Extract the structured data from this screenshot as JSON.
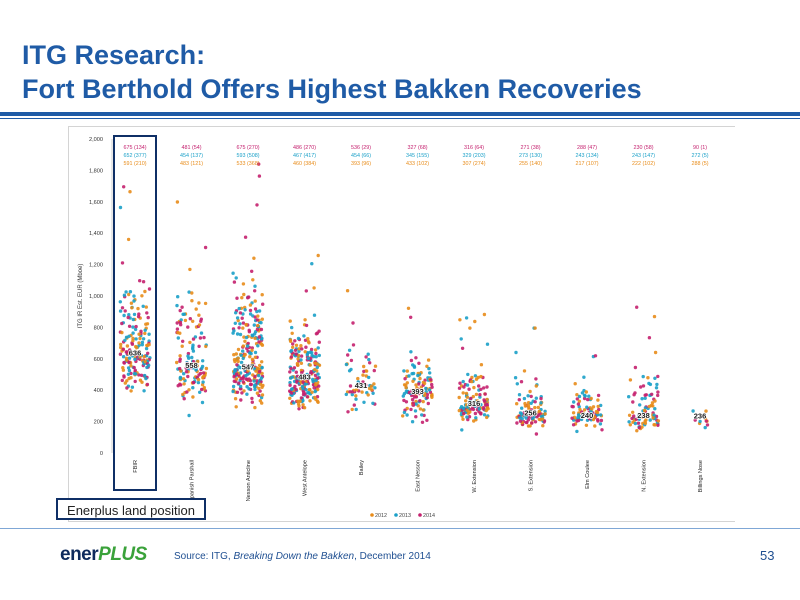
{
  "slide": {
    "title_line1": "ITG Research:",
    "title_line2": "Fort Berthold Offers Highest Bakken Recoveries",
    "source_prefix": "Source:  ITG, ",
    "source_title": "Breaking Down the Bakken",
    "source_suffix": ", December 2014",
    "page_number": "53",
    "logo_part1": "ener",
    "logo_part2": "PLUS",
    "callout": "Enerplus land position"
  },
  "colors": {
    "title": "#1f5ba6",
    "rule": "#1f5ba6",
    "series_2012": "#e88c1a",
    "series_2013": "#1aa0c8",
    "series_2014": "#c4206e",
    "highlight_box": "#0f2f66"
  },
  "chart_data": {
    "type": "scatter",
    "title": "",
    "xlabel": "",
    "ylabel": "ITG IR Est. EUR (Mboe)",
    "ylim": [
      0,
      2000
    ],
    "yticks": [
      "0",
      "200",
      "400",
      "600",
      "800",
      "1,000",
      "1,200",
      "1,400",
      "1,600",
      "1,800",
      "2,000"
    ],
    "categories": [
      "FBIR",
      "Spanish Parshall",
      "Nesson Anticline",
      "West Antelope",
      "Bailey",
      "East Nesson",
      "W. Extension",
      "S. Extension",
      "Elm Coulee",
      "N. Extension",
      "Billings Nose"
    ],
    "series_names": [
      "2012",
      "2013",
      "2014"
    ],
    "medians": [
      "636",
      "558",
      "547",
      "483",
      "431",
      "393",
      "316",
      "256",
      "240",
      "238",
      "236"
    ],
    "median_values": [
      636,
      558,
      547,
      483,
      431,
      393,
      316,
      256,
      240,
      238,
      236
    ],
    "header_2014": [
      "675 (134)",
      "481 (54)",
      "675 (270)",
      "486 (270)",
      "536 (29)",
      "327 (68)",
      "316 (64)",
      "271 (38)",
      "288 (47)",
      "230 (58)",
      "90 (1)"
    ],
    "header_2013": [
      "652 (377)",
      "454 (137)",
      "593 (508)",
      "467 (417)",
      "454 (66)",
      "345 (155)",
      "329 (203)",
      "273 (130)",
      "243 (134)",
      "243 (147)",
      "272 (5)"
    ],
    "header_2012": [
      "591 (210)",
      "483 (121)",
      "533 (368)",
      "460 (384)",
      "393 (96)",
      "433 (102)",
      "307 (274)",
      "255 (140)",
      "217 (107)",
      "222 (102)",
      "288 (5)"
    ],
    "spread": [
      {
        "lo": 40,
        "hi": 1740,
        "n": 180
      },
      {
        "lo": 60,
        "hi": 1750,
        "n": 140
      },
      {
        "lo": 40,
        "hi": 1960,
        "n": 260
      },
      {
        "lo": 40,
        "hi": 1280,
        "n": 230
      },
      {
        "lo": 60,
        "hi": 1100,
        "n": 60
      },
      {
        "lo": 40,
        "hi": 960,
        "n": 120
      },
      {
        "lo": 60,
        "hi": 900,
        "n": 130
      },
      {
        "lo": 40,
        "hi": 820,
        "n": 100
      },
      {
        "lo": 60,
        "hi": 640,
        "n": 90
      },
      {
        "lo": 40,
        "hi": 940,
        "n": 90
      },
      {
        "lo": 60,
        "hi": 450,
        "n": 10
      }
    ],
    "legend_position": "bottom",
    "grid": false
  }
}
